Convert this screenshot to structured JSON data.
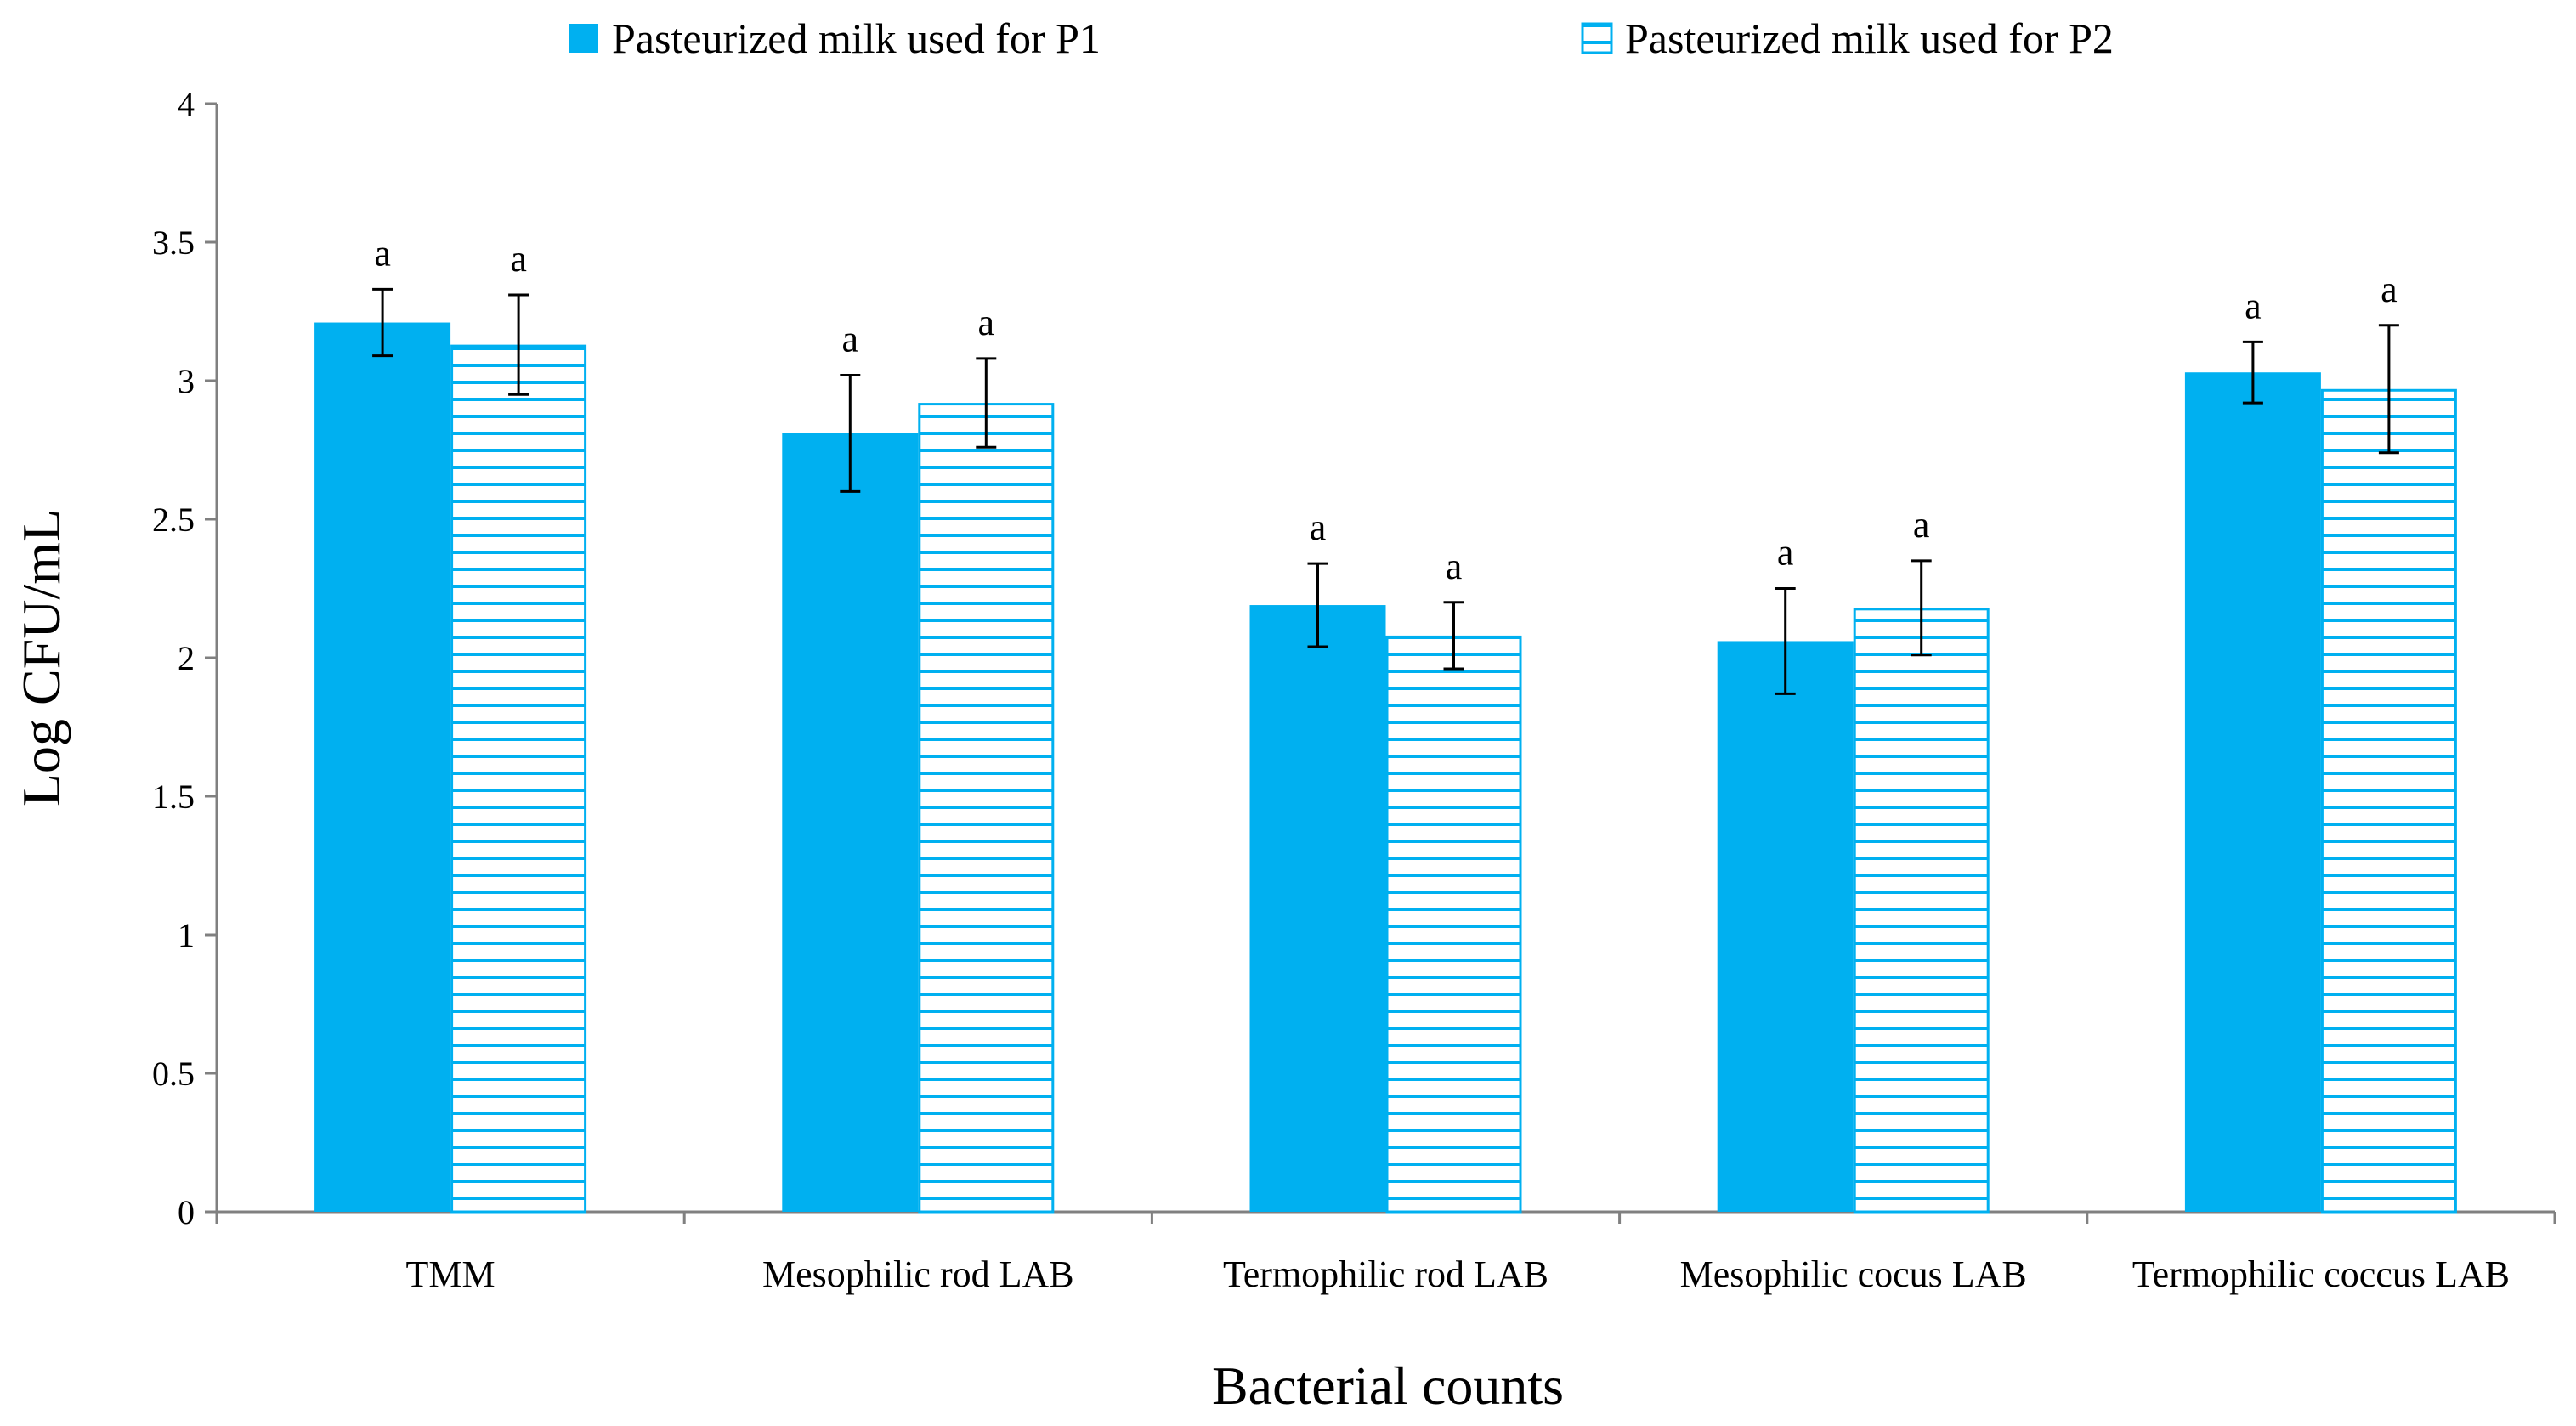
{
  "chart_data": {
    "type": "bar",
    "title": "",
    "xlabel": "Bacterial counts",
    "ylabel": "Log CFU/mL",
    "ylim": [
      0,
      4
    ],
    "yticks": [
      0,
      0.5,
      1,
      1.5,
      2,
      2.5,
      3,
      3.5,
      4
    ],
    "ytick_labels": [
      "0",
      "0.5",
      "1",
      "1.5",
      "2",
      "2.5",
      "3",
      "3.5",
      "4"
    ],
    "categories": [
      "TMM",
      "Mesophilic rod LAB",
      "Termophilic rod LAB",
      "Mesophilic cocus LAB",
      "Termophilic coccus LAB"
    ],
    "series": [
      {
        "name": "Pasteurized milk used for P1",
        "fill": "solid",
        "color": "#00b0f0",
        "values": [
          3.21,
          2.81,
          2.19,
          2.06,
          3.03
        ],
        "error": [
          0.12,
          0.21,
          0.15,
          0.19,
          0.11
        ],
        "labels": [
          "a",
          "a",
          "a",
          "a",
          "a"
        ]
      },
      {
        "name": "Pasteurized milk used for P2",
        "fill": "horizontal-stripes",
        "color": "#00b0f0",
        "values": [
          3.13,
          2.92,
          2.08,
          2.18,
          2.97
        ],
        "error": [
          0.18,
          0.16,
          0.12,
          0.17,
          0.23
        ],
        "labels": [
          "a",
          "a",
          "a",
          "a",
          "a"
        ]
      }
    ],
    "legend_position": "top"
  }
}
